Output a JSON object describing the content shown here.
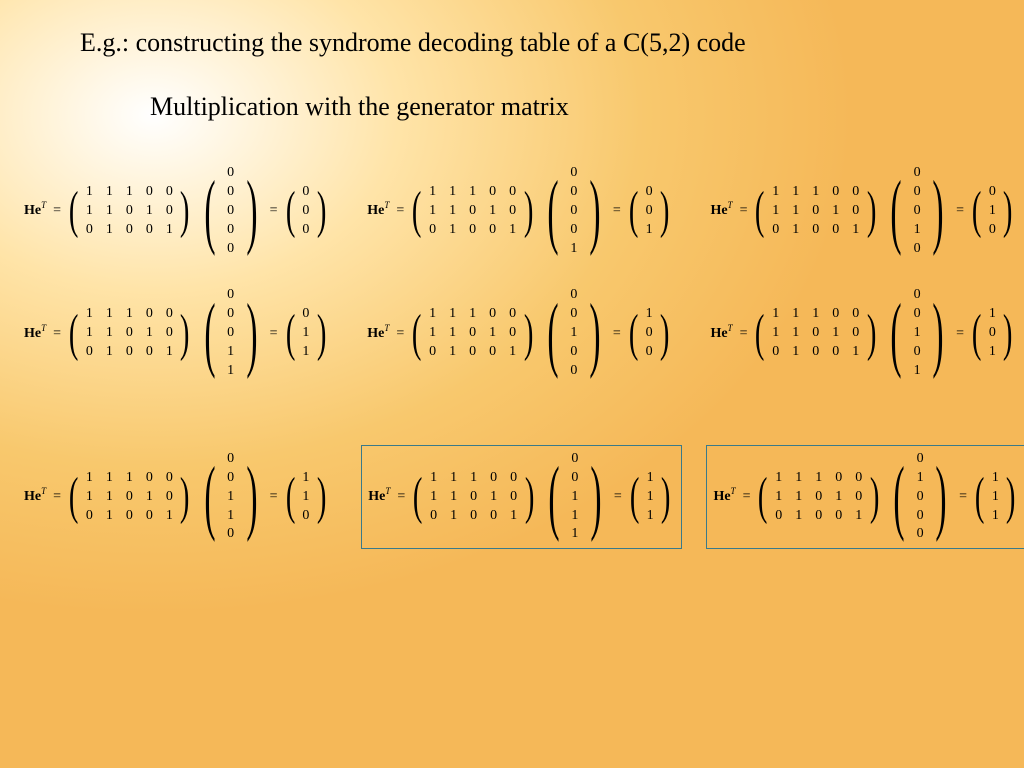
{
  "title": "E.g.: constructing the syndrome decoding table of a C(5,2) code",
  "subtitle": "Multiplication with the generator matrix",
  "label": "He",
  "superscript": "T",
  "equals": "=",
  "H": [
    [
      "1",
      "1",
      "1",
      "0",
      "0"
    ],
    [
      "1",
      "1",
      "0",
      "1",
      "0"
    ],
    [
      "0",
      "1",
      "0",
      "0",
      "1"
    ]
  ],
  "equations": [
    {
      "e": [
        "0",
        "0",
        "0",
        "0",
        "0"
      ],
      "r": [
        "0",
        "0",
        "0"
      ],
      "boxed": false
    },
    {
      "e": [
        "0",
        "0",
        "0",
        "0",
        "1"
      ],
      "r": [
        "0",
        "0",
        "1"
      ],
      "boxed": false
    },
    {
      "e": [
        "0",
        "0",
        "0",
        "1",
        "0"
      ],
      "r": [
        "0",
        "1",
        "0"
      ],
      "boxed": false
    },
    {
      "e": [
        "0",
        "0",
        "0",
        "1",
        "1"
      ],
      "r": [
        "0",
        "1",
        "1"
      ],
      "boxed": false
    },
    {
      "e": [
        "0",
        "0",
        "1",
        "0",
        "0"
      ],
      "r": [
        "1",
        "0",
        "0"
      ],
      "boxed": false
    },
    {
      "e": [
        "0",
        "0",
        "1",
        "0",
        "1"
      ],
      "r": [
        "1",
        "0",
        "1"
      ],
      "boxed": false
    },
    {
      "e": [
        "0",
        "0",
        "1",
        "1",
        "0"
      ],
      "r": [
        "1",
        "1",
        "0"
      ],
      "boxed": false
    },
    {
      "e": [
        "0",
        "0",
        "1",
        "1",
        "1"
      ],
      "r": [
        "1",
        "1",
        "1"
      ],
      "boxed": true
    },
    {
      "e": [
        "0",
        "1",
        "0",
        "0",
        "0"
      ],
      "r": [
        "1",
        "1",
        "1"
      ],
      "boxed": true
    }
  ],
  "styling": {
    "background_gradient": [
      "#ffffff",
      "#ffe4a8",
      "#f8c86d",
      "#f5b858"
    ],
    "box_border_color": "#3a7a8a",
    "title_fontsize": 26,
    "body_fontsize": 14,
    "font_family": "Times New Roman"
  }
}
